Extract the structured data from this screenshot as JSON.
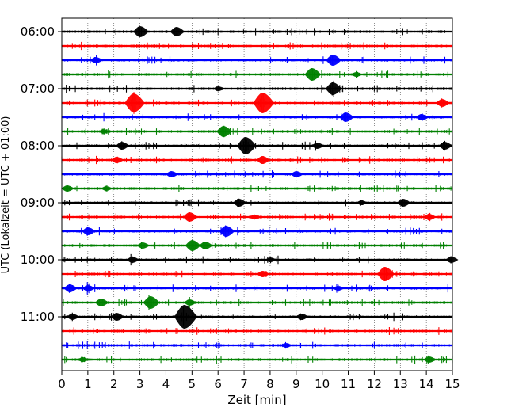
{
  "chart_data": {
    "type": "line",
    "title": "",
    "xlabel": "Zeit  [min]",
    "ylabel": "UTC (Lokalzeit = UTC + 01:00)",
    "xlim": [
      0,
      15
    ],
    "x_ticks": [
      "0",
      "1",
      "2",
      "3",
      "4",
      "5",
      "6",
      "7",
      "8",
      "9",
      "10",
      "11",
      "12",
      "13",
      "14",
      "15"
    ],
    "y_tick_labels": [
      "06:00",
      "07:00",
      "08:00",
      "09:00",
      "10:00",
      "11:00"
    ],
    "grid": "vertical dotted at each minute",
    "colors": [
      "#000000",
      "#ff0000",
      "#0000ff",
      "#008000"
    ],
    "traces": [
      {
        "start": "06:00",
        "color": "#000000",
        "bursts": [
          {
            "t": 3.0,
            "amp": 7
          },
          {
            "t": 4.4,
            "amp": 6
          }
        ]
      },
      {
        "start": "06:15",
        "color": "#ff0000",
        "bursts": []
      },
      {
        "start": "06:30",
        "color": "#0000ff",
        "bursts": [
          {
            "t": 1.3,
            "amp": 4
          },
          {
            "t": 10.4,
            "amp": 7
          }
        ]
      },
      {
        "start": "06:45",
        "color": "#008000",
        "bursts": [
          {
            "t": 9.6,
            "amp": 8
          },
          {
            "t": 11.3,
            "amp": 3
          }
        ]
      },
      {
        "start": "07:00",
        "color": "#000000",
        "bursts": [
          {
            "t": 10.4,
            "amp": 8
          },
          {
            "t": 6.0,
            "amp": 3
          }
        ]
      },
      {
        "start": "07:15",
        "color": "#ff0000",
        "bursts": [
          {
            "t": 2.75,
            "amp": 12
          },
          {
            "t": 7.7,
            "amp": 13
          },
          {
            "t": 14.6,
            "amp": 5
          }
        ]
      },
      {
        "start": "07:30",
        "color": "#0000ff",
        "bursts": [
          {
            "t": 10.9,
            "amp": 6
          },
          {
            "t": 13.8,
            "amp": 4
          }
        ]
      },
      {
        "start": "07:45",
        "color": "#008000",
        "bursts": [
          {
            "t": 6.2,
            "amp": 7
          },
          {
            "t": 1.6,
            "amp": 3
          }
        ]
      },
      {
        "start": "08:00",
        "color": "#000000",
        "bursts": [
          {
            "t": 2.3,
            "amp": 5
          },
          {
            "t": 7.05,
            "amp": 11
          },
          {
            "t": 9.8,
            "amp": 4
          },
          {
            "t": 14.7,
            "amp": 5
          }
        ]
      },
      {
        "start": "08:15",
        "color": "#ff0000",
        "bursts": [
          {
            "t": 7.7,
            "amp": 5
          },
          {
            "t": 2.1,
            "amp": 4
          }
        ]
      },
      {
        "start": "08:30",
        "color": "#0000ff",
        "bursts": [
          {
            "t": 4.2,
            "amp": 4
          },
          {
            "t": 9.0,
            "amp": 4
          }
        ]
      },
      {
        "start": "08:45",
        "color": "#008000",
        "bursts": [
          {
            "t": 0.2,
            "amp": 4
          },
          {
            "t": 1.7,
            "amp": 3
          }
        ]
      },
      {
        "start": "09:00",
        "color": "#000000",
        "bursts": [
          {
            "t": 6.8,
            "amp": 5
          },
          {
            "t": 13.1,
            "amp": 5
          },
          {
            "t": 11.5,
            "amp": 3
          }
        ]
      },
      {
        "start": "09:15",
        "color": "#ff0000",
        "bursts": [
          {
            "t": 4.9,
            "amp": 6
          },
          {
            "t": 14.1,
            "amp": 4
          },
          {
            "t": 7.4,
            "amp": 3
          }
        ]
      },
      {
        "start": "09:30",
        "color": "#0000ff",
        "bursts": [
          {
            "t": 6.3,
            "amp": 7
          },
          {
            "t": 1.0,
            "amp": 5
          }
        ]
      },
      {
        "start": "09:45",
        "color": "#008000",
        "bursts": [
          {
            "t": 5.0,
            "amp": 7
          },
          {
            "t": 5.5,
            "amp": 5
          },
          {
            "t": 3.1,
            "amp": 4
          }
        ]
      },
      {
        "start": "10:00",
        "color": "#000000",
        "bursts": [
          {
            "t": 2.7,
            "amp": 4
          },
          {
            "t": 14.95,
            "amp": 4
          },
          {
            "t": 8.0,
            "amp": 3
          }
        ]
      },
      {
        "start": "10:15",
        "color": "#ff0000",
        "bursts": [
          {
            "t": 12.4,
            "amp": 9
          },
          {
            "t": 7.7,
            "amp": 4
          }
        ]
      },
      {
        "start": "10:30",
        "color": "#0000ff",
        "bursts": [
          {
            "t": 0.3,
            "amp": 5
          },
          {
            "t": 1.0,
            "amp": 4
          },
          {
            "t": 10.6,
            "amp": 3
          }
        ]
      },
      {
        "start": "10:45",
        "color": "#008000",
        "bursts": [
          {
            "t": 3.4,
            "amp": 8
          },
          {
            "t": 1.5,
            "amp": 5
          },
          {
            "t": 4.9,
            "amp": 4
          }
        ]
      },
      {
        "start": "11:00",
        "color": "#000000",
        "bursts": [
          {
            "t": 4.7,
            "amp": 15
          },
          {
            "t": 2.1,
            "amp": 5
          },
          {
            "t": 9.2,
            "amp": 4
          },
          {
            "t": 0.4,
            "amp": 4
          }
        ]
      },
      {
        "start": "11:15",
        "color": "#ff0000",
        "bursts": []
      },
      {
        "start": "11:30",
        "color": "#0000ff",
        "bursts": [
          {
            "t": 8.6,
            "amp": 3
          }
        ]
      },
      {
        "start": "11:45",
        "color": "#008000",
        "bursts": [
          {
            "t": 14.1,
            "amp": 4
          },
          {
            "t": 0.8,
            "amp": 3
          }
        ]
      }
    ]
  }
}
